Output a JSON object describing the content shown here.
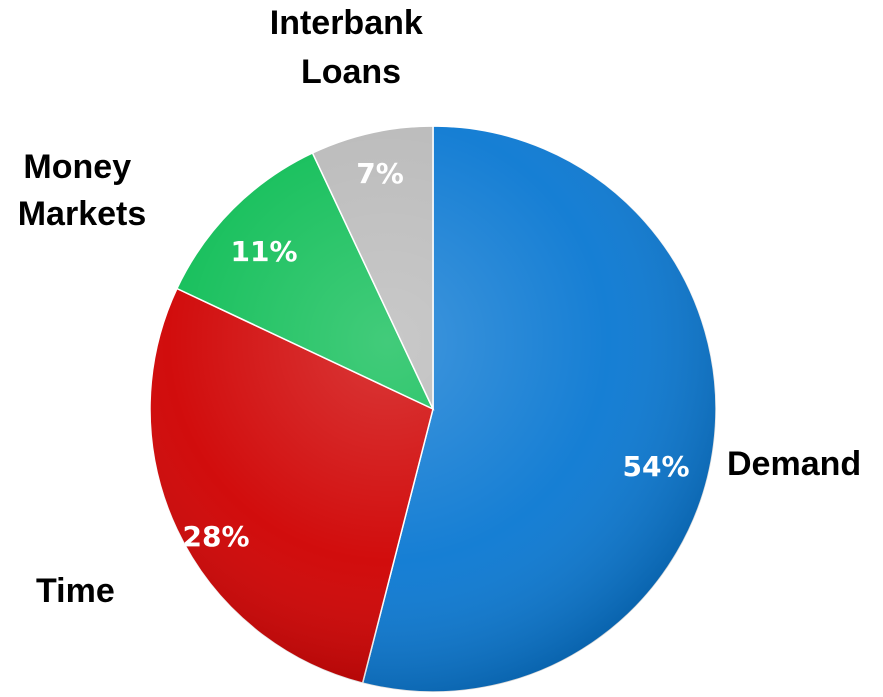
{
  "chart_data": {
    "type": "pie",
    "slices": [
      {
        "label": "Demand",
        "value": 54,
        "value_label": "54%",
        "color": "#0a78d2"
      },
      {
        "label": "Time",
        "value": 28,
        "value_label": "28%",
        "color": "#cf0000"
      },
      {
        "label": "Money Markets",
        "label_lines": [
          "Money",
          "Markets"
        ],
        "value": 11,
        "value_label": "11%",
        "color": "#0dbd55"
      },
      {
        "label": "Interbank Loans",
        "label_lines": [
          "Interbank",
          "Loans"
        ],
        "value": 7,
        "value_label": "7%",
        "color": "#b9b9b9"
      }
    ],
    "start": "12 o'clock",
    "direction": "clockwise",
    "legend": "none",
    "data_labels": "inside"
  }
}
